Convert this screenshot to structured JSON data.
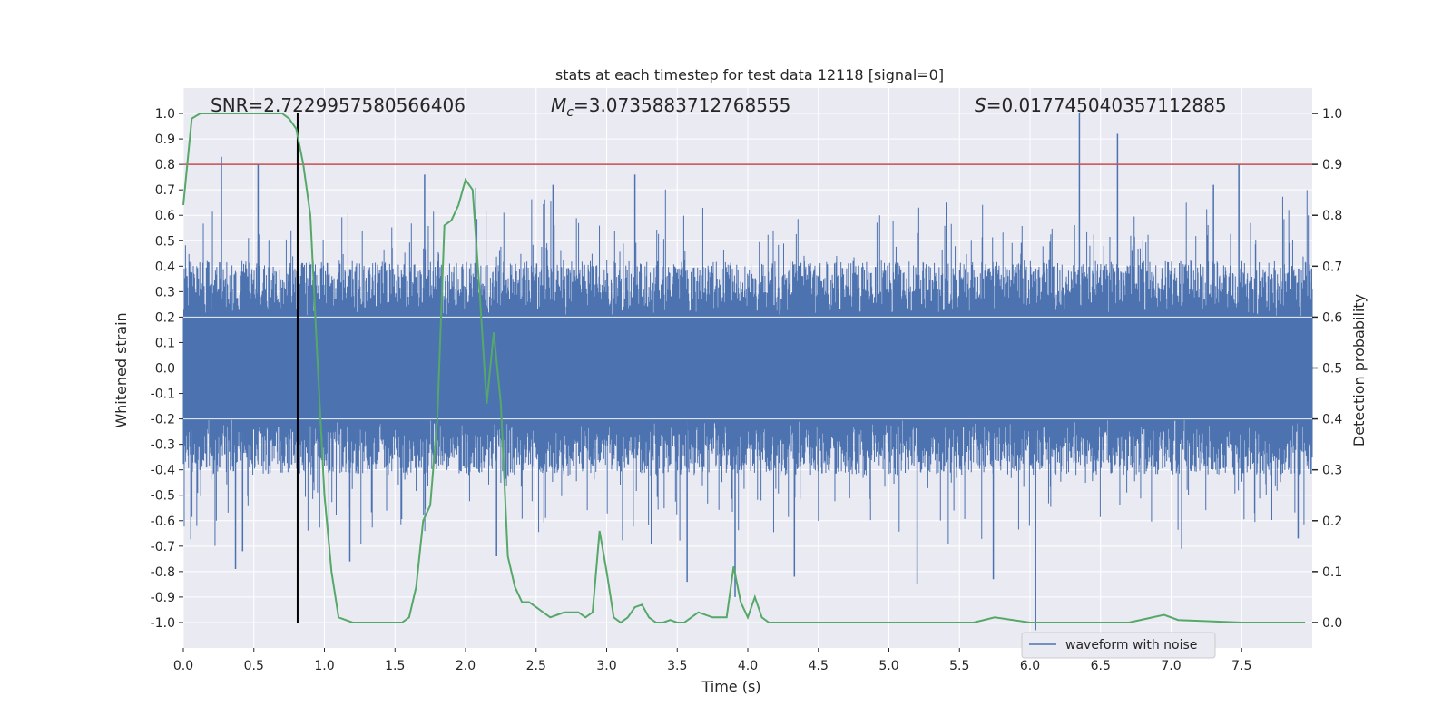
{
  "chart_data": {
    "type": "line",
    "title": "stats at each timestep for test data 12118 [signal=0]",
    "xlabel": "Time (s)",
    "ylabel_left": "Whitened strain",
    "ylabel_right": "Detection probability",
    "xlim": [
      0.0,
      8.0
    ],
    "ylim_left": [
      -1.1,
      1.1
    ],
    "ylim_right": [
      -0.05,
      1.05
    ],
    "grid": true,
    "x_ticks": [
      "0.0",
      "0.5",
      "1.0",
      "1.5",
      "2.0",
      "2.5",
      "3.0",
      "3.5",
      "4.0",
      "4.5",
      "5.0",
      "5.5",
      "6.0",
      "6.5",
      "7.0",
      "7.5"
    ],
    "y_left_ticks": [
      "1.0",
      "0.9",
      "0.8",
      "0.7",
      "0.6",
      "0.5",
      "0.4",
      "0.3",
      "0.2",
      "0.1",
      "0.0",
      "-0.1",
      "-0.2",
      "-0.3",
      "-0.4",
      "-0.5",
      "-0.6",
      "-0.7",
      "-0.8",
      "-0.9",
      "-1.0"
    ],
    "y_right_ticks": [
      "1.0",
      "0.9",
      "0.8",
      "0.7",
      "0.6",
      "0.5",
      "0.4",
      "0.3",
      "0.2",
      "0.1",
      "0.0"
    ],
    "annotations": {
      "snr": "SNR=2.7229957580566406",
      "mc_symbol": "M",
      "mc_sub": "c",
      "mc_value": "=3.0735883712768555",
      "s_symbol": "S",
      "s_value": "=0.017745040357112885"
    },
    "threshold": {
      "y": 0.8,
      "color": "#c44e52"
    },
    "marker_time": 0.81,
    "legend": {
      "label": "waveform with noise",
      "location": "lower-right"
    },
    "series": [
      {
        "name": "waveform with noise",
        "axis": "left",
        "color": "#4c72b0",
        "envelope_note": "dense noise waveform; typical extent ~±0.4 with spikes",
        "spikes": [
          [
            0.27,
            0.83
          ],
          [
            0.53,
            0.8
          ],
          [
            1.71,
            0.76
          ],
          [
            2.62,
            0.72
          ],
          [
            3.2,
            0.76
          ],
          [
            6.35,
            1.0
          ],
          [
            6.62,
            0.92
          ],
          [
            7.48,
            0.8
          ],
          [
            7.3,
            0.72
          ],
          [
            0.37,
            -0.79
          ],
          [
            0.42,
            -0.72
          ],
          [
            1.18,
            -0.76
          ],
          [
            2.22,
            -0.74
          ],
          [
            3.57,
            -0.84
          ],
          [
            3.91,
            -0.9
          ],
          [
            4.33,
            -0.82
          ],
          [
            5.2,
            -0.85
          ],
          [
            5.74,
            -0.83
          ],
          [
            6.04,
            -1.03
          ],
          [
            7.9,
            -0.67
          ]
        ]
      },
      {
        "name": "",
        "axis": "right",
        "color": "#55a868",
        "x": [
          0.0,
          0.06,
          0.12,
          0.3,
          0.5,
          0.7,
          0.75,
          0.8,
          0.85,
          0.9,
          0.95,
          1.0,
          1.05,
          1.1,
          1.2,
          1.4,
          1.55,
          1.6,
          1.65,
          1.7,
          1.75,
          1.8,
          1.85,
          1.9,
          1.95,
          2.0,
          2.05,
          2.1,
          2.15,
          2.2,
          2.25,
          2.3,
          2.35,
          2.4,
          2.45,
          2.5,
          2.55,
          2.6,
          2.65,
          2.7,
          2.8,
          2.85,
          2.9,
          2.95,
          3.0,
          3.05,
          3.1,
          3.15,
          3.2,
          3.25,
          3.3,
          3.35,
          3.4,
          3.45,
          3.5,
          3.55,
          3.6,
          3.65,
          3.75,
          3.85,
          3.9,
          3.95,
          4.0,
          4.05,
          4.1,
          4.15,
          4.2,
          4.25,
          4.3,
          4.35,
          4.4,
          4.5,
          4.7,
          5.0,
          5.5,
          5.6,
          5.75,
          6.0,
          6.3,
          6.55,
          6.7,
          6.95,
          7.05,
          7.5,
          7.6,
          7.65,
          7.75,
          7.85,
          7.95
        ],
        "values": [
          0.82,
          0.99,
          1.0,
          1.0,
          1.0,
          1.0,
          0.99,
          0.97,
          0.9,
          0.8,
          0.52,
          0.25,
          0.1,
          0.01,
          0.0,
          0.0,
          0.0,
          0.01,
          0.07,
          0.2,
          0.23,
          0.4,
          0.78,
          0.79,
          0.82,
          0.87,
          0.85,
          0.65,
          0.43,
          0.57,
          0.43,
          0.13,
          0.07,
          0.04,
          0.04,
          0.03,
          0.02,
          0.01,
          0.015,
          0.02,
          0.02,
          0.01,
          0.02,
          0.18,
          0.1,
          0.01,
          0.0,
          0.01,
          0.03,
          0.035,
          0.01,
          0.0,
          0.0,
          0.005,
          0.0,
          0.0,
          0.01,
          0.02,
          0.01,
          0.01,
          0.11,
          0.04,
          0.01,
          0.05,
          0.01,
          0.0,
          0.0,
          0.0,
          0.0,
          0.0,
          0.0,
          0.0,
          0.0,
          0.0,
          0.0,
          0.0,
          0.01,
          0.0,
          0.0,
          0.0,
          0.0,
          0.015,
          0.005,
          0.0,
          0.0,
          0.0,
          0.0,
          0.0,
          0.0
        ]
      }
    ]
  }
}
